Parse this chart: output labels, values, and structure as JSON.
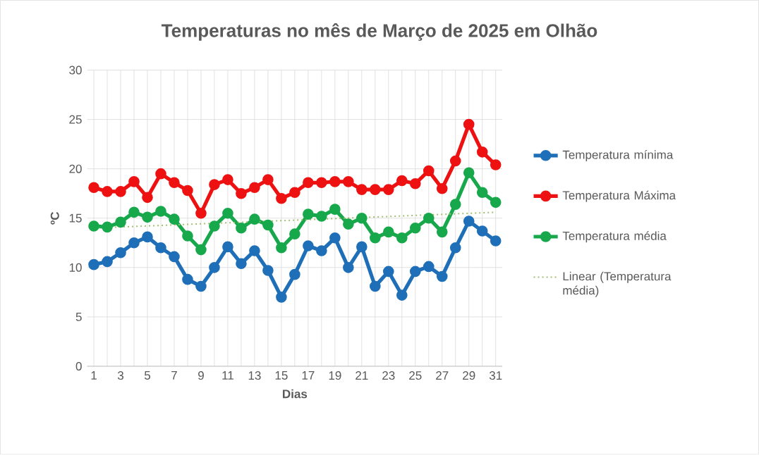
{
  "chart_data": {
    "type": "line",
    "title": "Temperaturas no mês de Março de 2025 em Olhão",
    "xlabel": "Dias",
    "ylabel": "ºC",
    "x": [
      1,
      2,
      3,
      4,
      5,
      6,
      7,
      8,
      9,
      10,
      11,
      12,
      13,
      14,
      15,
      16,
      17,
      18,
      19,
      20,
      21,
      22,
      23,
      24,
      25,
      26,
      27,
      28,
      29,
      30,
      31
    ],
    "xlim": [
      0.5,
      31.5
    ],
    "ylim": [
      0,
      30
    ],
    "yticks": [
      0,
      5,
      10,
      15,
      20,
      25,
      30
    ],
    "xticks": [
      1,
      {
        "value": 2,
        "label": null
      },
      3,
      {
        "value": 4,
        "label": null
      },
      5,
      {
        "value": 6,
        "label": null
      },
      7,
      {
        "value": 8,
        "label": null
      },
      9,
      {
        "value": 10,
        "label": null
      },
      11,
      {
        "value": 12,
        "label": null
      },
      13,
      {
        "value": 14,
        "label": null
      },
      15,
      {
        "value": 16,
        "label": null
      },
      17,
      {
        "value": 18,
        "label": null
      },
      19,
      {
        "value": 20,
        "label": null
      },
      21,
      {
        "value": 22,
        "label": null
      },
      23,
      {
        "value": 24,
        "label": null
      },
      25,
      {
        "value": 26,
        "label": null
      },
      27,
      {
        "value": 28,
        "label": null
      },
      29,
      {
        "value": 30,
        "label": null
      },
      31
    ],
    "grid": true,
    "legend": "right",
    "marker": "circle",
    "line_style": "solid",
    "series": [
      {
        "name": "Temperatura mínima",
        "color": "#1f6fb8",
        "values": [
          10.3,
          10.6,
          11.5,
          12.5,
          13.1,
          12.0,
          11.1,
          8.8,
          8.1,
          10.0,
          12.1,
          10.4,
          11.7,
          9.7,
          7.0,
          9.3,
          12.2,
          11.7,
          13.0,
          10.0,
          12.1,
          8.1,
          9.6,
          7.2,
          9.6,
          10.1,
          9.1,
          12.0,
          14.7,
          13.7,
          12.7
        ]
      },
      {
        "name": "Temperatura Máxima",
        "color": "#ee1111",
        "values": [
          18.1,
          17.7,
          17.7,
          18.7,
          17.1,
          19.5,
          18.6,
          17.8,
          15.5,
          18.4,
          18.9,
          17.5,
          18.1,
          18.9,
          17.0,
          17.6,
          18.6,
          18.6,
          18.7,
          18.7,
          17.9,
          17.9,
          17.9,
          18.8,
          18.5,
          19.8,
          18.0,
          20.8,
          24.5,
          21.7,
          20.4
        ]
      },
      {
        "name": "Temperatura média",
        "color": "#17a84c",
        "values": [
          14.2,
          14.1,
          14.6,
          15.6,
          15.1,
          15.7,
          14.9,
          13.2,
          11.8,
          14.2,
          15.5,
          14.0,
          14.9,
          14.3,
          12.0,
          13.4,
          15.4,
          15.2,
          15.9,
          14.4,
          15.0,
          13.0,
          13.6,
          13.0,
          14.0,
          15.0,
          13.6,
          16.4,
          19.6,
          17.6,
          16.6
        ]
      },
      {
        "name": "Linear (Temperatura média)",
        "color": "#a3bf6e",
        "type": "line",
        "marker": "none",
        "line_style": "dotted",
        "x": [
          1,
          31
        ],
        "values": [
          14.0,
          15.6
        ]
      }
    ]
  }
}
